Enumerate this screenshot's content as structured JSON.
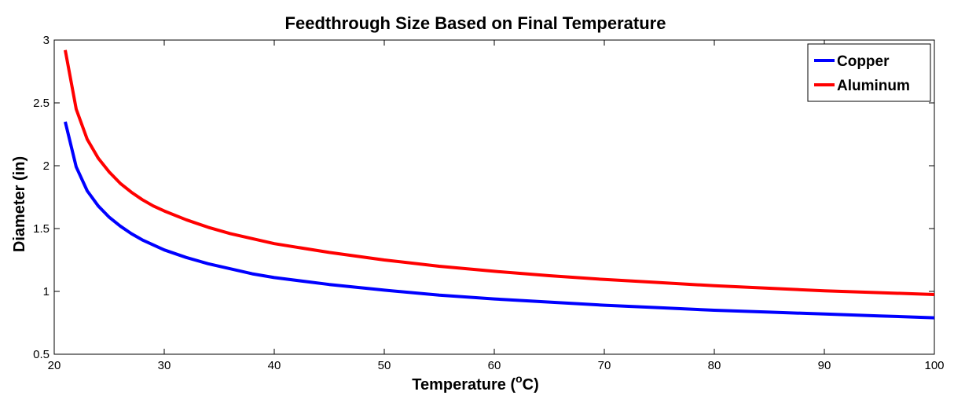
{
  "chart_data": {
    "type": "line",
    "title": "Feedthrough Size Based on Final Temperature",
    "xlabel": {
      "prefix": "Temperature (",
      "superscript": "o",
      "suffix": "C)"
    },
    "ylabel": "Diameter (in)",
    "xlim": [
      20,
      100
    ],
    "ylim": [
      0.5,
      3
    ],
    "xticks": [
      20,
      30,
      40,
      50,
      60,
      70,
      80,
      90,
      100
    ],
    "yticks": [
      0.5,
      1,
      1.5,
      2,
      2.5,
      3
    ],
    "xtick_labels": [
      "20",
      "30",
      "40",
      "50",
      "60",
      "70",
      "80",
      "90",
      "100"
    ],
    "ytick_labels": [
      "0.5",
      "1",
      "1.5",
      "2",
      "2.5",
      "3"
    ],
    "grid": false,
    "legend_position": "top-right",
    "series": [
      {
        "name": "Copper",
        "color": "#0000ff",
        "x": [
          21,
          22,
          23,
          24,
          25,
          26,
          27,
          28,
          29,
          30,
          32,
          34,
          36,
          38,
          40,
          45,
          50,
          55,
          60,
          65,
          70,
          75,
          80,
          85,
          90,
          95,
          100
        ],
        "values": [
          2.35,
          1.99,
          1.8,
          1.68,
          1.59,
          1.52,
          1.46,
          1.41,
          1.37,
          1.33,
          1.27,
          1.22,
          1.18,
          1.14,
          1.11,
          1.055,
          1.01,
          0.97,
          0.94,
          0.915,
          0.89,
          0.87,
          0.85,
          0.835,
          0.82,
          0.805,
          0.79
        ]
      },
      {
        "name": "Aluminum",
        "color": "#ff0000",
        "x": [
          21,
          22,
          23,
          24,
          25,
          26,
          27,
          28,
          29,
          30,
          32,
          34,
          36,
          38,
          40,
          45,
          50,
          55,
          60,
          65,
          70,
          75,
          80,
          85,
          90,
          95,
          100
        ],
        "values": [
          2.92,
          2.45,
          2.21,
          2.06,
          1.95,
          1.86,
          1.79,
          1.73,
          1.68,
          1.64,
          1.57,
          1.51,
          1.46,
          1.42,
          1.38,
          1.31,
          1.25,
          1.2,
          1.16,
          1.125,
          1.095,
          1.07,
          1.045,
          1.025,
          1.005,
          0.99,
          0.975
        ]
      }
    ]
  }
}
